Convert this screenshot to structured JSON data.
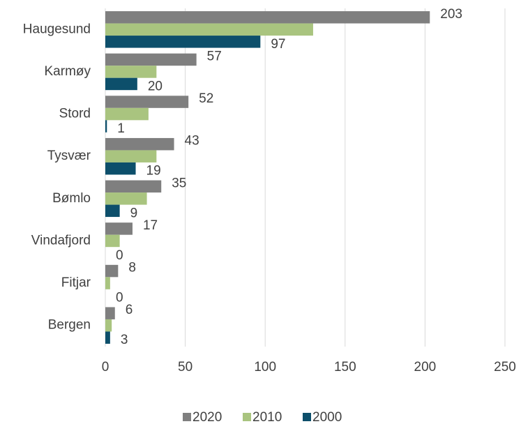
{
  "chart_data": {
    "type": "hbar",
    "categories": [
      "Haugesund",
      "Karmøy",
      "Stord",
      "Tysvær",
      "Bømlo",
      "Vindafjord",
      "Fitjar",
      "Bergen"
    ],
    "series": [
      {
        "name": "2020",
        "color": "#7f7f7f",
        "data_labels": true,
        "values": [
          203,
          57,
          52,
          43,
          35,
          17,
          8,
          6
        ]
      },
      {
        "name": "2010",
        "color": "#a9c47f",
        "data_labels": false,
        "values": [
          130,
          32,
          27,
          32,
          26,
          9,
          3,
          4
        ]
      },
      {
        "name": "2000",
        "color": "#0d4f6b",
        "data_labels": true,
        "values": [
          97,
          20,
          1,
          19,
          9,
          0,
          0,
          3
        ]
      }
    ],
    "xlim": [
      0,
      250
    ],
    "xticks": [
      0,
      50,
      100,
      150,
      200,
      250
    ],
    "grid": true,
    "legend": "bottom"
  }
}
